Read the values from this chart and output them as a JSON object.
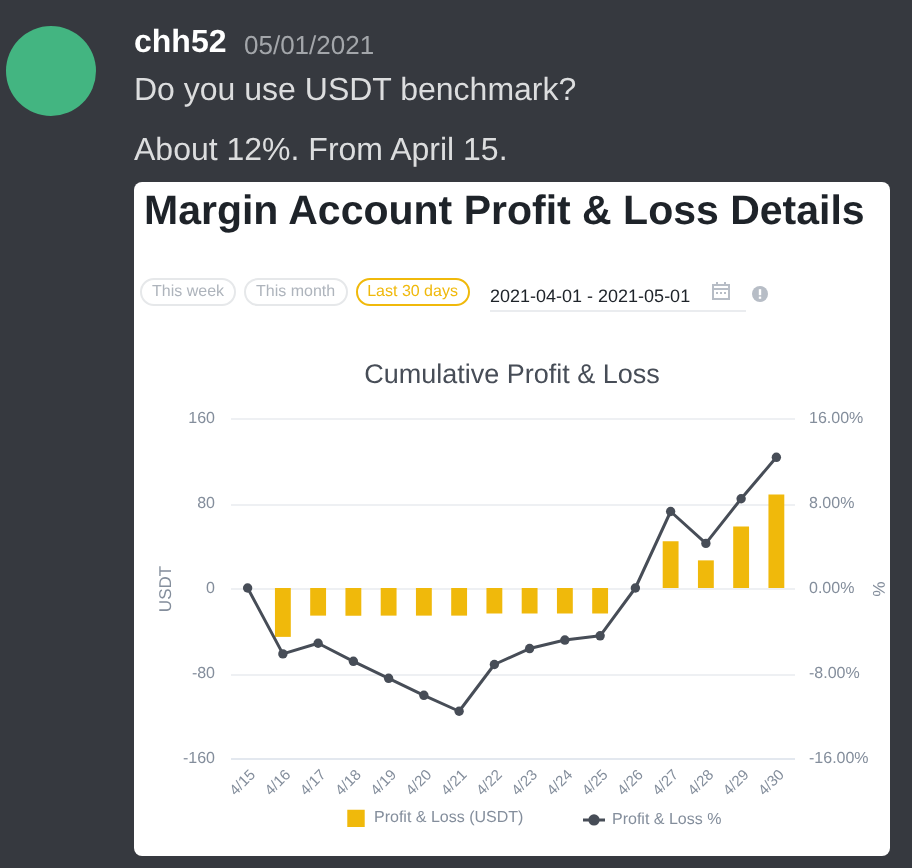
{
  "chart_data": {
    "type": "bar",
    "title": "Margin Account Profit & Loss Details",
    "subtitle": "Cumulative Profit & Loss",
    "ylabel": "USDT",
    "y2label": "%",
    "categories": [
      "4/15",
      "4/16",
      "4/17",
      "4/18",
      "4/19",
      "4/20",
      "4/21",
      "4/22",
      "4/23",
      "4/24",
      "4/25",
      "4/26",
      "4/27",
      "4/28",
      "4/29",
      "4/30"
    ],
    "series": [
      {
        "name": "Profit & Loss (USDT)",
        "color": "#f0b90b",
        "values": [
          0,
          -46,
          -26,
          -26,
          -26,
          -26,
          -26,
          -24,
          -24,
          -24,
          -24,
          0,
          44,
          26,
          58,
          88
        ]
      },
      {
        "name": "Profit & Loss %",
        "type": "line",
        "axis": "y2",
        "color": "#474d57",
        "values": [
          0,
          -6.2,
          -5.2,
          -6.9,
          -8.5,
          -10.1,
          -11.6,
          -7.2,
          -5.7,
          -4.9,
          -4.5,
          0,
          7.2,
          4.2,
          8.4,
          12.3
        ]
      }
    ],
    "ylim": [
      -160,
      160
    ],
    "yticks": [
      -160,
      -80,
      0,
      80,
      160
    ],
    "y2lim": [
      -16,
      16
    ],
    "y2ticks": [
      {
        "value": -16,
        "label": "-16.00%"
      },
      {
        "value": -8,
        "label": "-8.00%"
      },
      {
        "value": 0,
        "label": "0.00%"
      },
      {
        "value": 8,
        "label": "8.00%"
      },
      {
        "value": 16,
        "label": "16.00%"
      }
    ],
    "grid": "y",
    "legend": "bottom",
    "marker": "circle",
    "annotations": [
      "chh52",
      "05/01/2021",
      "Do you use USDT benchmark?",
      "About 12%. From April 15.",
      "This week",
      "This month",
      "Last 30 days",
      "2021-04-01 - 2021-05-01"
    ]
  }
}
